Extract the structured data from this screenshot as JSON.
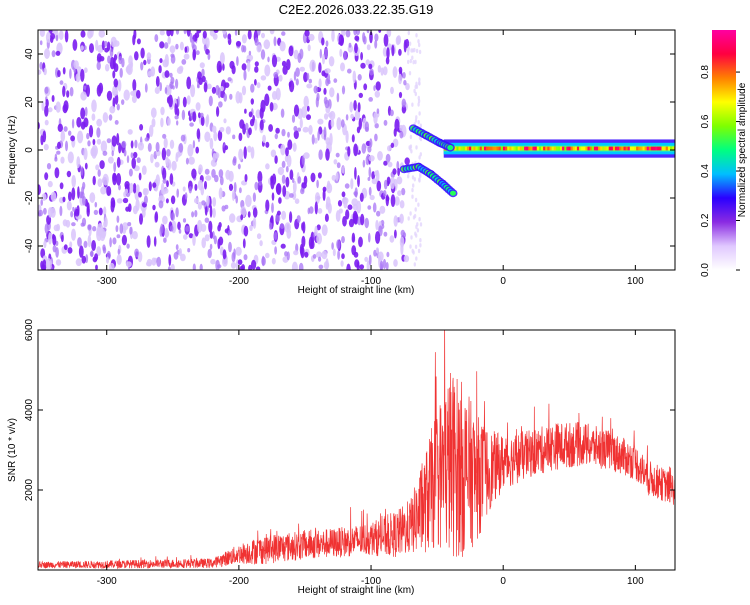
{
  "figure": {
    "title": "C2E2.2026.033.22.35.G19"
  },
  "chart_data": [
    {
      "type": "heatmap",
      "title": "C2E2.2026.033.22.35.G19",
      "xlabel": "Height of straight line (km)",
      "ylabel": "Frequency (Hz)",
      "xlim": [
        -352,
        130
      ],
      "ylim": [
        -50,
        50
      ],
      "x_ticks": [
        -300,
        -200,
        -100,
        0,
        100
      ],
      "x_tick_labels": [
        "-300",
        "-200",
        "-100",
        "0",
        "100"
      ],
      "y_ticks": [
        -40,
        -20,
        0,
        20,
        40
      ],
      "y_tick_labels": [
        "-40",
        "-20",
        "0",
        "20",
        "40"
      ],
      "noise_region_x": [
        -352,
        -72
      ],
      "tone_frequency": 0.6,
      "tone_start_x": -45,
      "fork_upper": [
        [
          -68,
          9
        ],
        [
          -58,
          6
        ],
        [
          -48,
          3
        ],
        [
          -40,
          1
        ]
      ],
      "fork_lower": [
        [
          -75,
          -8
        ],
        [
          -64,
          -7
        ],
        [
          -55,
          -10
        ],
        [
          -46,
          -14
        ],
        [
          -38,
          -18
        ]
      ],
      "colorbar": {
        "label": "Normalized spectral amplitude",
        "range": [
          0,
          0.97
        ],
        "ticks": [
          0,
          0.2,
          0.4,
          0.6,
          0.8
        ],
        "tick_labels": [
          "0.0",
          "0.2",
          "0.4",
          "0.6",
          "0.8"
        ],
        "colors": [
          "#ffffff",
          "#e0c8ff",
          "#8a2be2",
          "#2a00ff",
          "#00bfff",
          "#00ff80",
          "#7fff00",
          "#ffff00",
          "#ff8000",
          "#ff0040",
          "#ff00a0"
        ]
      }
    },
    {
      "type": "line",
      "xlabel": "Height of straight line (km)",
      "ylabel": "SNR (10 * v/v)",
      "xlim": [
        -352,
        130
      ],
      "ylim": [
        0,
        6000
      ],
      "x_ticks": [
        -300,
        -200,
        -100,
        0,
        100
      ],
      "x_tick_labels": [
        "-300",
        "-200",
        "-100",
        "0",
        "100"
      ],
      "y_ticks": [
        2000,
        4000,
        6000
      ],
      "y_tick_labels": [
        "2000",
        "4000",
        "6000"
      ],
      "color": "#f03232",
      "envelope": {
        "x": [
          -352,
          -300,
          -250,
          -220,
          -200,
          -180,
          -150,
          -120,
          -100,
          -80,
          -70,
          -60,
          -50,
          -40,
          -30,
          -20,
          -10,
          0,
          20,
          40,
          60,
          80,
          100,
          110,
          130
        ],
        "center": [
          130,
          140,
          160,
          170,
          400,
          520,
          620,
          700,
          780,
          900,
          1100,
          1600,
          2300,
          2700,
          2500,
          2300,
          2500,
          2700,
          2900,
          3100,
          3150,
          3000,
          2700,
          2300,
          2000
        ],
        "amplitude": [
          80,
          100,
          110,
          120,
          250,
          380,
          360,
          380,
          420,
          600,
          700,
          1200,
          1800,
          2400,
          2200,
          1600,
          1000,
          700,
          600,
          600,
          550,
          500,
          450,
          450,
          400
        ]
      }
    }
  ]
}
